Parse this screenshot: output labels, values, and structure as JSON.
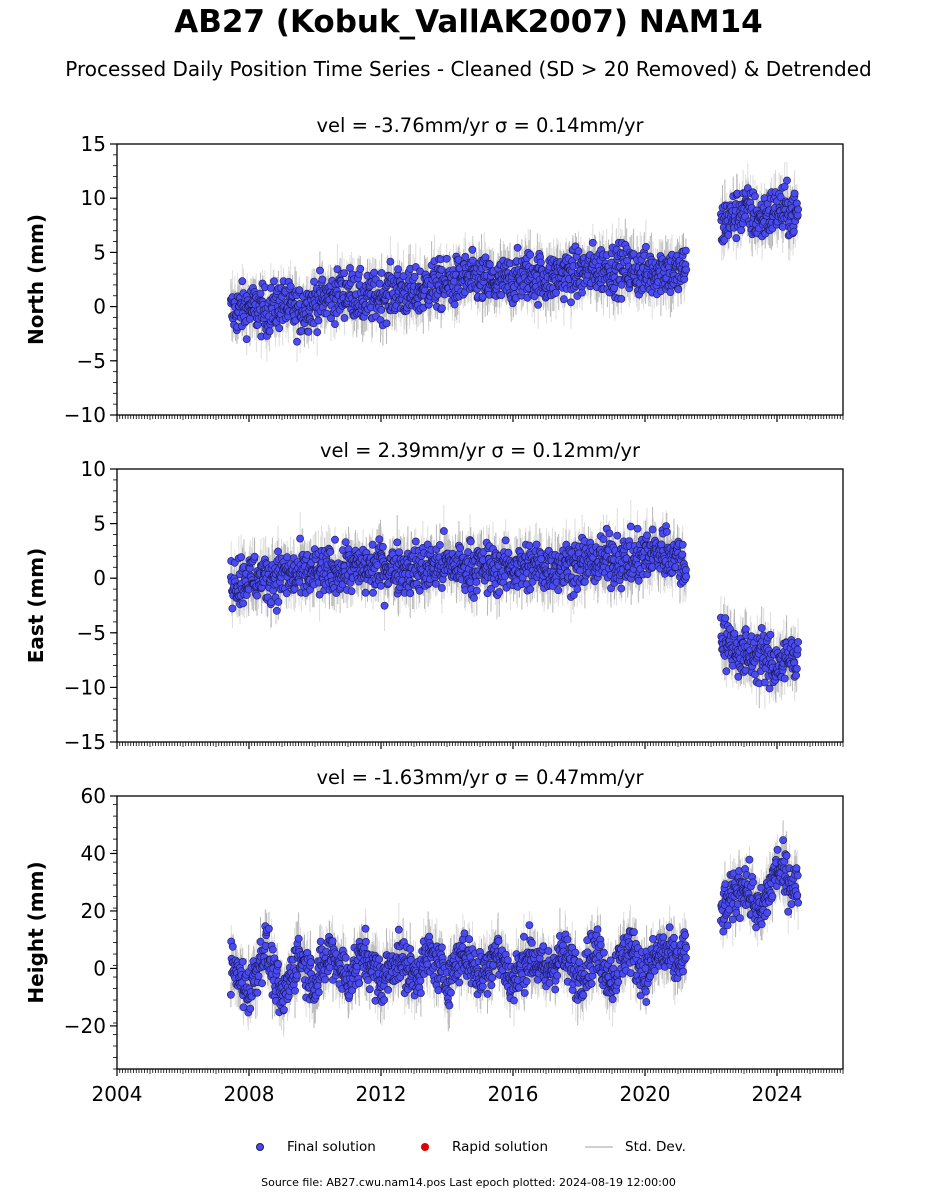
{
  "title": "AB27 (Kobuk_VallAK2007) NAM14",
  "subtitle": "Processed Daily Position Time Series - Cleaned (SD > 20 Removed) & Detrended",
  "legend": {
    "final": "Final solution",
    "rapid": "Rapid solution",
    "std": "Std. Dev."
  },
  "footer": "Source file: AB27.cwu.nam14.pos  Last epoch plotted: 2024-08-19 12:00:00",
  "colors": {
    "final_fill": "#4a4af5",
    "final_edge": "#1a1a50",
    "rapid": "#e00000",
    "std_dev": "#c8c8c8"
  },
  "chart_data": [
    {
      "type": "scatter",
      "title": "vel = -3.76mm/yr   σ = 0.14mm/yr",
      "ylabel": "North (mm)",
      "xlim": [
        2004,
        2026
      ],
      "ylim": [
        -10,
        15
      ],
      "yticks": [
        -10,
        -5,
        0,
        5,
        10,
        15
      ],
      "series": [
        {
          "name": "Final solution",
          "x": [
            2007.5,
            2008.0,
            2008.5,
            2009.0,
            2009.5,
            2010.0,
            2010.5,
            2011.0,
            2011.5,
            2012.0,
            2012.5,
            2013.0,
            2013.5,
            2014.0,
            2014.5,
            2015.0,
            2015.5,
            2016.0,
            2016.5,
            2017.0,
            2017.5,
            2018.0,
            2018.5,
            2019.0,
            2019.5,
            2020.0,
            2020.5,
            2021.0,
            2022.5,
            2023.0,
            2023.5,
            2024.0,
            2024.6
          ],
          "y": [
            -0.5,
            0.0,
            -0.5,
            0.3,
            -0.5,
            0.5,
            0.8,
            1.5,
            0.5,
            1.0,
            1.5,
            1.0,
            2.0,
            2.0,
            2.5,
            2.5,
            2.0,
            2.5,
            3.0,
            2.5,
            3.0,
            3.0,
            3.5,
            3.5,
            3.5,
            3.0,
            3.5,
            3.0,
            8.0,
            9.0,
            8.0,
            9.0,
            8.5
          ]
        }
      ]
    },
    {
      "type": "scatter",
      "title": "vel = 2.39mm/yr   σ = 0.12mm/yr",
      "ylabel": "East (mm)",
      "xlim": [
        2004,
        2026
      ],
      "ylim": [
        -15,
        10
      ],
      "yticks": [
        -15,
        -10,
        -5,
        0,
        5,
        10
      ],
      "series": [
        {
          "name": "Final solution",
          "x": [
            2007.5,
            2008.0,
            2008.5,
            2009.0,
            2009.5,
            2010.0,
            2010.5,
            2011.0,
            2011.5,
            2012.0,
            2012.5,
            2013.0,
            2013.5,
            2014.0,
            2014.5,
            2015.0,
            2015.5,
            2016.0,
            2016.5,
            2017.0,
            2017.5,
            2018.0,
            2018.5,
            2019.0,
            2019.5,
            2020.0,
            2020.5,
            2021.0,
            2022.5,
            2023.0,
            2023.5,
            2024.0,
            2024.6
          ],
          "y": [
            -0.3,
            0.0,
            0.0,
            0.3,
            0.2,
            0.5,
            0.5,
            1.0,
            0.8,
            1.0,
            1.0,
            0.8,
            1.0,
            1.2,
            1.0,
            1.0,
            0.8,
            1.0,
            1.0,
            1.0,
            1.2,
            1.2,
            1.5,
            1.8,
            1.5,
            2.0,
            2.5,
            2.0,
            -6.0,
            -7.0,
            -7.0,
            -8.0,
            -7.0
          ]
        }
      ]
    },
    {
      "type": "scatter",
      "title": "vel = -1.63mm/yr   σ = 0.47mm/yr",
      "ylabel": "Height (mm)",
      "xlim": [
        2004,
        2026
      ],
      "ylim": [
        -35,
        60
      ],
      "yticks": [
        -20,
        0,
        20,
        40,
        60
      ],
      "xticks": [
        2004,
        2008,
        2012,
        2016,
        2020,
        2024
      ],
      "series": [
        {
          "name": "Final solution",
          "x": [
            2007.5,
            2008.0,
            2008.5,
            2009.0,
            2009.5,
            2010.0,
            2010.5,
            2011.0,
            2011.5,
            2012.0,
            2012.5,
            2013.0,
            2013.5,
            2014.0,
            2014.5,
            2015.0,
            2015.5,
            2016.0,
            2016.5,
            2017.0,
            2017.5,
            2018.0,
            2018.5,
            2019.0,
            2019.5,
            2020.0,
            2020.5,
            2021.0,
            2022.5,
            2023.0,
            2023.5,
            2024.0,
            2024.6
          ],
          "y": [
            0.0,
            -8.0,
            8.0,
            -12.0,
            5.0,
            -5.0,
            6.0,
            -4.0,
            5.0,
            -5.0,
            4.0,
            -3.0,
            5.0,
            -4.0,
            6.0,
            -3.0,
            6.0,
            -5.0,
            5.0,
            -2.0,
            5.0,
            -3.0,
            6.0,
            -4.0,
            8.0,
            -2.0,
            6.0,
            2.0,
            22.0,
            30.0,
            18.0,
            35.0,
            28.0
          ]
        }
      ]
    }
  ]
}
